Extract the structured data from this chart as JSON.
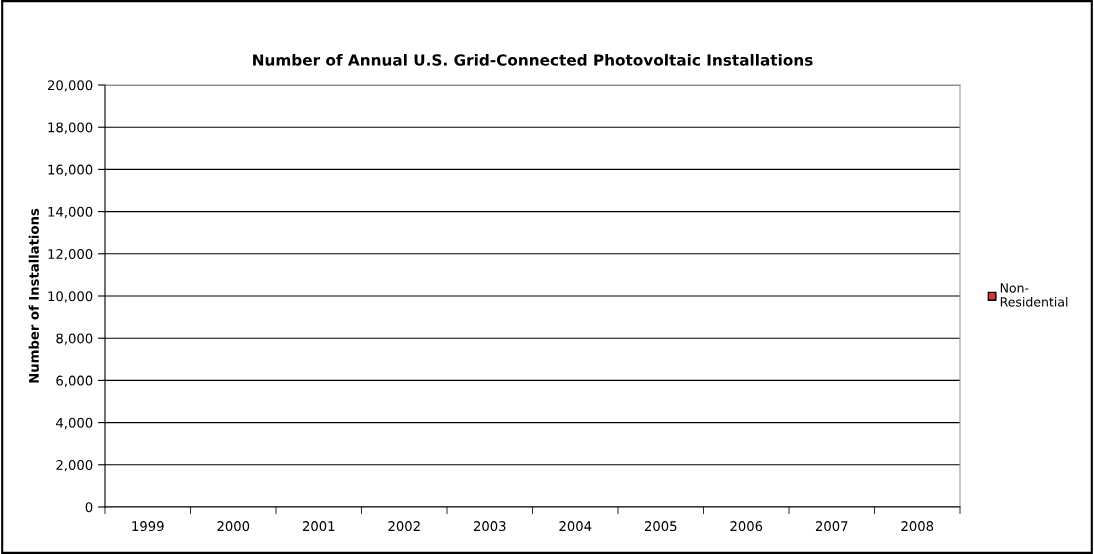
{
  "chart_data": {
    "type": "bar",
    "title": "Number of Annual U.S. Grid-Connected Photovoltaic Installations",
    "ylabel": "Number of Installations",
    "categories": [
      "1999",
      "2000",
      "2001",
      "2002",
      "2003",
      "2004",
      "2005",
      "2006",
      "2007",
      "2008"
    ],
    "series": [
      {
        "name": "Non-\nResidential",
        "color": "#e03030",
        "values": [
          null,
          null,
          null,
          null,
          null,
          null,
          null,
          null,
          null,
          null
        ]
      }
    ],
    "ylim": [
      0,
      20000
    ],
    "yticks": [
      {
        "value": 0,
        "label": "0"
      },
      {
        "value": 2000,
        "label": "2,000"
      },
      {
        "value": 4000,
        "label": "4,000"
      },
      {
        "value": 6000,
        "label": "6,000"
      },
      {
        "value": 8000,
        "label": "8,000"
      },
      {
        "value": 10000,
        "label": "10,000"
      },
      {
        "value": 12000,
        "label": "12,000"
      },
      {
        "value": 14000,
        "label": "14,000"
      },
      {
        "value": 16000,
        "label": "16,000"
      },
      {
        "value": 18000,
        "label": "18,000"
      },
      {
        "value": 20000,
        "label": "20,000"
      }
    ],
    "grid": "y",
    "legend": "right"
  }
}
